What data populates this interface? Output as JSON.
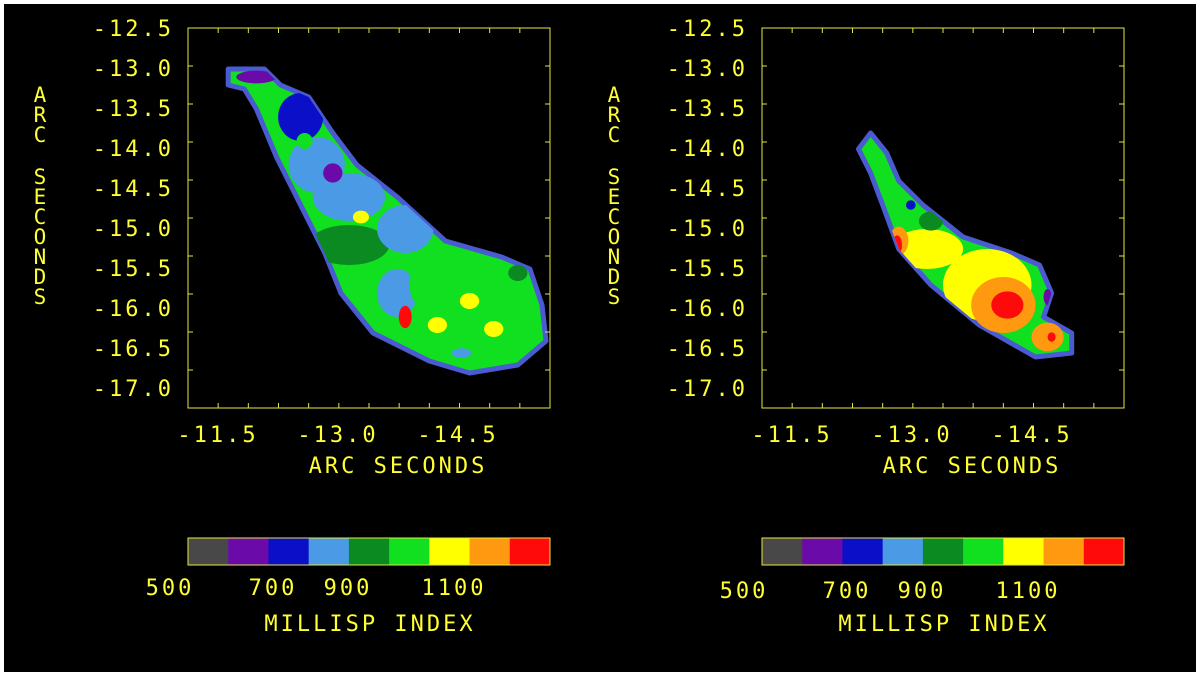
{
  "colors": {
    "background": "#000000",
    "text": "#ffff33",
    "frame": "#e6e640",
    "edge": "#4a5ad0"
  },
  "chart_data": [
    {
      "type": "heatmap",
      "panel": "left",
      "title": "",
      "xlabel": "ARC SECONDS",
      "ylabel": "ARC SECONDS",
      "x_ticks": [
        "-11.5",
        "-13.0",
        "-14.5"
      ],
      "y_ticks": [
        "-12.5",
        "-13.0",
        "-13.5",
        "-14.0",
        "-14.5",
        "-15.0",
        "-15.5",
        "-16.0",
        "-16.5",
        "-17.0"
      ],
      "xlim": [
        -11.5,
        -16.0
      ],
      "ylim": [
        -12.5,
        -17.0
      ],
      "grid": false,
      "colorbar": {
        "label": "MILLISP INDEX",
        "tick_labels": [
          "500",
          "700",
          "900",
          "1100"
        ],
        "range": [
          500,
          1250
        ],
        "bins": [
          {
            "lo": 500,
            "hi": 583,
            "color": "#484848"
          },
          {
            "lo": 583,
            "hi": 667,
            "color": "#6a0aa8"
          },
          {
            "lo": 667,
            "hi": 750,
            "color": "#0b10c8"
          },
          {
            "lo": 750,
            "hi": 833,
            "color": "#4a9ae6"
          },
          {
            "lo": 833,
            "hi": 917,
            "color": "#0a8a20"
          },
          {
            "lo": 917,
            "hi": 1000,
            "color": "#10e020"
          },
          {
            "lo": 1000,
            "hi": 1083,
            "color": "#ffff00"
          },
          {
            "lo": 1083,
            "hi": 1167,
            "color": "#ff9a10"
          },
          {
            "lo": 1167,
            "hi": 1250,
            "color": "#ff0a0a"
          }
        ]
      },
      "dominant_index": "800-1000",
      "region": {
        "outline": [
          [
            -12.0,
            -13.0
          ],
          [
            -12.45,
            -13.0
          ],
          [
            -12.65,
            -13.2
          ],
          [
            -13.0,
            -13.35
          ],
          [
            -13.3,
            -13.8
          ],
          [
            -13.6,
            -14.2
          ],
          [
            -14.1,
            -14.6
          ],
          [
            -14.7,
            -15.15
          ],
          [
            -15.4,
            -15.35
          ],
          [
            -15.75,
            -15.5
          ],
          [
            -15.9,
            -15.95
          ],
          [
            -15.95,
            -16.4
          ],
          [
            -15.6,
            -16.7
          ],
          [
            -15.0,
            -16.8
          ],
          [
            -14.5,
            -16.65
          ],
          [
            -13.8,
            -16.3
          ],
          [
            -13.4,
            -15.8
          ],
          [
            -13.2,
            -15.3
          ],
          [
            -12.9,
            -14.7
          ],
          [
            -12.6,
            -14.1
          ],
          [
            -12.35,
            -13.5
          ],
          [
            -12.2,
            -13.25
          ],
          [
            -12.0,
            -13.2
          ]
        ],
        "fill_index": 950,
        "features": [
          {
            "x": -12.35,
            "y": -13.1,
            "rx": 0.25,
            "ry": 0.08,
            "index": 620
          },
          {
            "x": -12.9,
            "y": -13.6,
            "rx": 0.28,
            "ry": 0.3,
            "index": 700
          },
          {
            "x": -13.1,
            "y": -14.2,
            "rx": 0.35,
            "ry": 0.35,
            "index": 780
          },
          {
            "x": -13.5,
            "y": -14.6,
            "rx": 0.45,
            "ry": 0.3,
            "index": 800
          },
          {
            "x": -13.3,
            "y": -14.3,
            "rx": 0.12,
            "ry": 0.12,
            "index": 650
          },
          {
            "x": -12.95,
            "y": -13.9,
            "rx": 0.1,
            "ry": 0.1,
            "index": 950
          },
          {
            "x": -13.65,
            "y": -14.85,
            "rx": 0.1,
            "ry": 0.08,
            "index": 1040
          },
          {
            "x": -13.5,
            "y": -15.2,
            "rx": 0.5,
            "ry": 0.25,
            "index": 880
          },
          {
            "x": -14.2,
            "y": -15.0,
            "rx": 0.35,
            "ry": 0.3,
            "index": 820
          },
          {
            "x": -14.1,
            "y": -15.8,
            "rx": 0.25,
            "ry": 0.3,
            "index": 800
          },
          {
            "x": -14.8,
            "y": -15.7,
            "rx": 0.55,
            "ry": 0.45,
            "index": 970
          },
          {
            "x": -15.0,
            "y": -15.9,
            "rx": 0.12,
            "ry": 0.1,
            "index": 1040
          },
          {
            "x": -14.6,
            "y": -16.2,
            "rx": 0.12,
            "ry": 0.1,
            "index": 1040
          },
          {
            "x": -15.3,
            "y": -16.25,
            "rx": 0.12,
            "ry": 0.1,
            "index": 1040
          },
          {
            "x": -14.2,
            "y": -16.1,
            "rx": 0.08,
            "ry": 0.14,
            "index": 1200
          },
          {
            "x": -14.9,
            "y": -16.55,
            "rx": 0.12,
            "ry": 0.06,
            "index": 800
          },
          {
            "x": -15.6,
            "y": -15.55,
            "rx": 0.12,
            "ry": 0.1,
            "index": 880
          }
        ]
      }
    },
    {
      "type": "heatmap",
      "panel": "right",
      "title": "",
      "xlabel": "ARC SECONDS",
      "ylabel": "ARC SECONDS",
      "x_ticks": [
        "-11.5",
        "-13.0",
        "-14.5"
      ],
      "y_ticks": [
        "-12.5",
        "-13.0",
        "-13.5",
        "-14.0",
        "-14.5",
        "-15.0",
        "-15.5",
        "-16.0",
        "-16.5",
        "-17.0"
      ],
      "xlim": [
        -11.5,
        -16.0
      ],
      "ylim": [
        -12.5,
        -17.0
      ],
      "grid": false,
      "colorbar": {
        "label": "MILLISP INDEX",
        "tick_labels": [
          "500",
          "700",
          "900",
          "1100"
        ],
        "range": [
          500,
          1250
        ],
        "bins": [
          {
            "lo": 500,
            "hi": 583,
            "color": "#484848"
          },
          {
            "lo": 583,
            "hi": 667,
            "color": "#6a0aa8"
          },
          {
            "lo": 667,
            "hi": 750,
            "color": "#0b10c8"
          },
          {
            "lo": 750,
            "hi": 833,
            "color": "#4a9ae6"
          },
          {
            "lo": 833,
            "hi": 917,
            "color": "#0a8a20"
          },
          {
            "lo": 917,
            "hi": 1000,
            "color": "#10e020"
          },
          {
            "lo": 1000,
            "hi": 1083,
            "color": "#ffff00"
          },
          {
            "lo": 1083,
            "hi": 1167,
            "color": "#ff9a10"
          },
          {
            "lo": 1167,
            "hi": 1250,
            "color": "#ff0a0a"
          }
        ]
      },
      "dominant_index": "1000-1200",
      "region": {
        "outline": [
          [
            -12.7,
            -14.0
          ],
          [
            -12.85,
            -13.8
          ],
          [
            -13.05,
            -14.05
          ],
          [
            -13.2,
            -14.4
          ],
          [
            -13.5,
            -14.7
          ],
          [
            -14.0,
            -15.1
          ],
          [
            -14.6,
            -15.3
          ],
          [
            -14.95,
            -15.45
          ],
          [
            -15.1,
            -15.8
          ],
          [
            -15.0,
            -16.1
          ],
          [
            -15.35,
            -16.3
          ],
          [
            -15.35,
            -16.55
          ],
          [
            -14.9,
            -16.6
          ],
          [
            -14.2,
            -16.2
          ],
          [
            -13.6,
            -15.7
          ],
          [
            -13.2,
            -15.25
          ],
          [
            -13.0,
            -14.7
          ],
          [
            -12.85,
            -14.3
          ]
        ],
        "fill_index": 950,
        "features": [
          {
            "x": -13.55,
            "y": -15.25,
            "rx": 0.45,
            "ry": 0.25,
            "index": 1040
          },
          {
            "x": -13.2,
            "y": -15.15,
            "rx": 0.12,
            "ry": 0.18,
            "index": 1120
          },
          {
            "x": -13.18,
            "y": -15.2,
            "rx": 0.06,
            "ry": 0.12,
            "index": 1200
          },
          {
            "x": -13.6,
            "y": -14.9,
            "rx": 0.15,
            "ry": 0.12,
            "index": 880
          },
          {
            "x": -13.35,
            "y": -14.7,
            "rx": 0.06,
            "ry": 0.06,
            "index": 720
          },
          {
            "x": -14.3,
            "y": -15.7,
            "rx": 0.55,
            "ry": 0.45,
            "index": 1040
          },
          {
            "x": -14.5,
            "y": -15.95,
            "rx": 0.4,
            "ry": 0.35,
            "index": 1120
          },
          {
            "x": -14.55,
            "y": -15.95,
            "rx": 0.2,
            "ry": 0.17,
            "index": 1200
          },
          {
            "x": -15.05,
            "y": -16.35,
            "rx": 0.2,
            "ry": 0.18,
            "index": 1120
          },
          {
            "x": -15.1,
            "y": -16.35,
            "rx": 0.05,
            "ry": 0.06,
            "index": 1200
          },
          {
            "x": -14.5,
            "y": -15.5,
            "rx": 0.1,
            "ry": 0.08,
            "index": 1040
          },
          {
            "x": -15.05,
            "y": -15.85,
            "rx": 0.05,
            "ry": 0.1,
            "index": 620
          }
        ]
      }
    }
  ]
}
